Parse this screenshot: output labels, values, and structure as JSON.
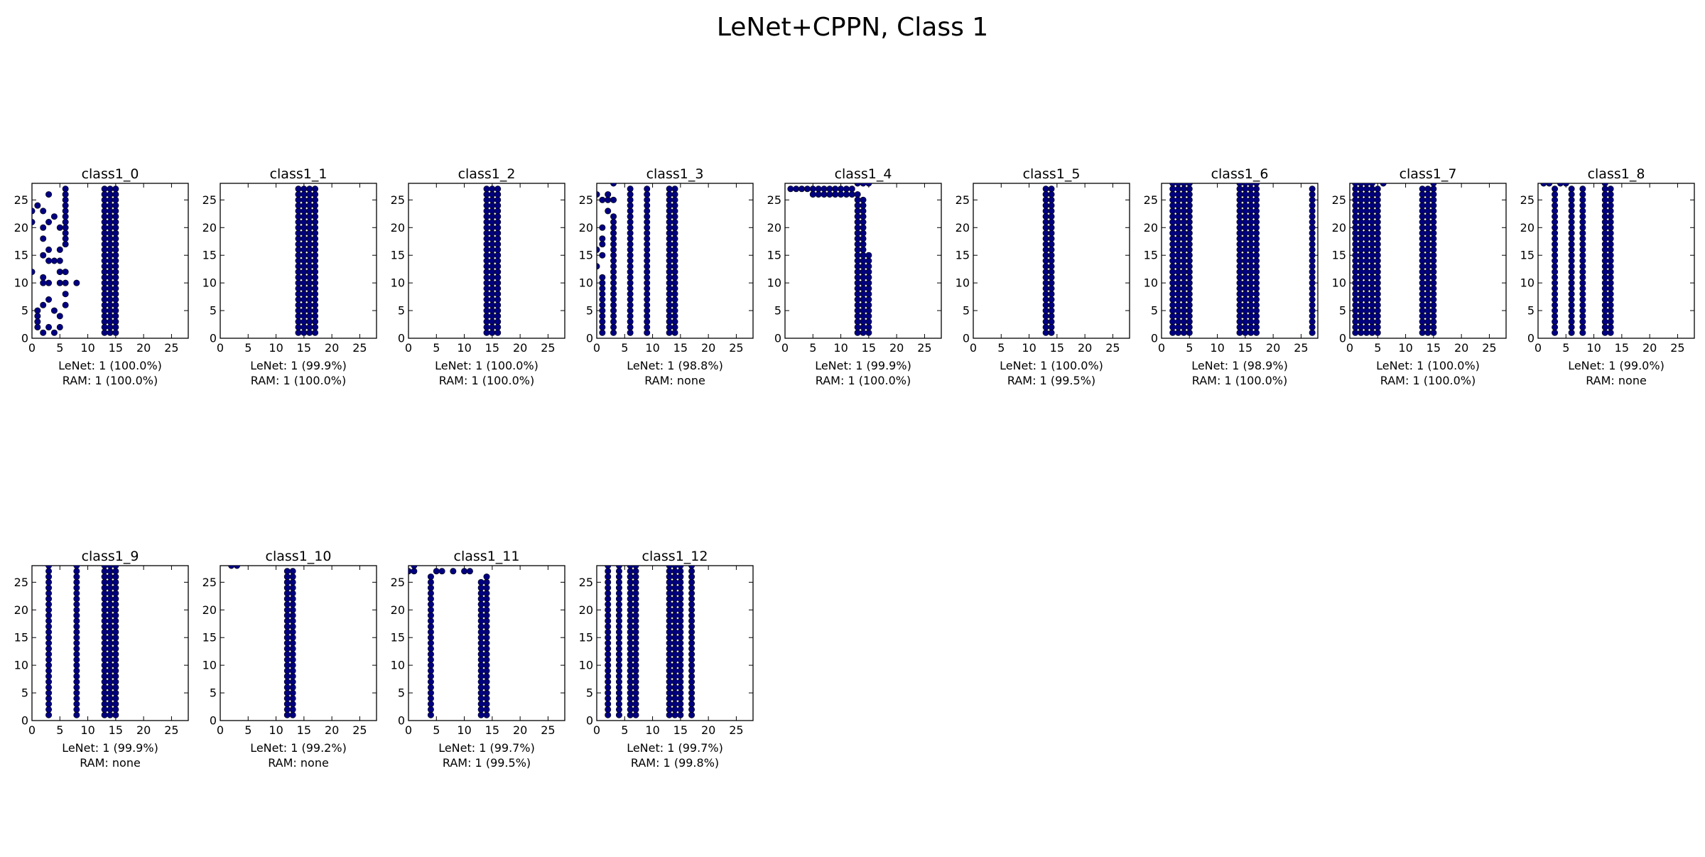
{
  "figure": {
    "title": "LeNet+CPPN, Class 1",
    "marker_color": "#000080",
    "axis_color": "#000000"
  },
  "chart_data": [
    {
      "type": "scatter",
      "title": "class1_0",
      "xlim": [
        0,
        28
      ],
      "ylim": [
        0,
        28
      ],
      "xticks": [
        0,
        5,
        10,
        15,
        20,
        25
      ],
      "yticks": [
        0,
        5,
        10,
        15,
        20,
        25
      ],
      "caption": [
        "LeNet: 1 (100.0%)",
        "RAM: 1 (100.0%)"
      ],
      "columns": [
        {
          "x": 6,
          "y_from": 17,
          "y_to": 27
        },
        {
          "x": 13,
          "y_from": 1,
          "y_to": 27
        },
        {
          "x": 14,
          "y_from": 1,
          "y_to": 27
        },
        {
          "x": 15,
          "y_from": 1,
          "y_to": 27
        }
      ],
      "points": [
        [
          0,
          12
        ],
        [
          0,
          21
        ],
        [
          0,
          23
        ],
        [
          1,
          24
        ],
        [
          1,
          5
        ],
        [
          1,
          4
        ],
        [
          1,
          3
        ],
        [
          1,
          2
        ],
        [
          2,
          1
        ],
        [
          2,
          20
        ],
        [
          2,
          23
        ],
        [
          2,
          18
        ],
        [
          2,
          15
        ],
        [
          2,
          11
        ],
        [
          2,
          10
        ],
        [
          2,
          6
        ],
        [
          3,
          26
        ],
        [
          3,
          21
        ],
        [
          3,
          16
        ],
        [
          3,
          14
        ],
        [
          3,
          10
        ],
        [
          3,
          7
        ],
        [
          3,
          2
        ],
        [
          4,
          22
        ],
        [
          4,
          14
        ],
        [
          4,
          5
        ],
        [
          4,
          1
        ],
        [
          5,
          20
        ],
        [
          5,
          16
        ],
        [
          5,
          14
        ],
        [
          5,
          12
        ],
        [
          5,
          10
        ],
        [
          5,
          4
        ],
        [
          5,
          2
        ],
        [
          6,
          12
        ],
        [
          6,
          10
        ],
        [
          6,
          8
        ],
        [
          6,
          6
        ],
        [
          8,
          10
        ]
      ]
    },
    {
      "type": "scatter",
      "title": "class1_1",
      "xlim": [
        0,
        28
      ],
      "ylim": [
        0,
        28
      ],
      "xticks": [
        0,
        5,
        10,
        15,
        20,
        25
      ],
      "yticks": [
        0,
        5,
        10,
        15,
        20,
        25
      ],
      "caption": [
        "LeNet: 1 (99.9%)",
        "RAM: 1 (100.0%)"
      ],
      "columns": [
        {
          "x": 14,
          "y_from": 1,
          "y_to": 27
        },
        {
          "x": 15,
          "y_from": 1,
          "y_to": 27
        },
        {
          "x": 16,
          "y_from": 1,
          "y_to": 27
        },
        {
          "x": 17,
          "y_from": 1,
          "y_to": 27
        }
      ],
      "points": []
    },
    {
      "type": "scatter",
      "title": "class1_2",
      "xlim": [
        0,
        28
      ],
      "ylim": [
        0,
        28
      ],
      "xticks": [
        0,
        5,
        10,
        15,
        20,
        25
      ],
      "yticks": [
        0,
        5,
        10,
        15,
        20,
        25
      ],
      "caption": [
        "LeNet: 1 (100.0%)",
        "RAM: 1 (100.0%)"
      ],
      "columns": [
        {
          "x": 14,
          "y_from": 1,
          "y_to": 27
        },
        {
          "x": 15,
          "y_from": 1,
          "y_to": 27
        },
        {
          "x": 16,
          "y_from": 1,
          "y_to": 27
        }
      ],
      "points": []
    },
    {
      "type": "scatter",
      "title": "class1_3",
      "xlim": [
        0,
        28
      ],
      "ylim": [
        0,
        28
      ],
      "xticks": [
        0,
        5,
        10,
        15,
        20,
        25
      ],
      "yticks": [
        0,
        5,
        10,
        15,
        20,
        25
      ],
      "caption": [
        "LeNet: 1 (98.8%)",
        "RAM: none"
      ],
      "columns": [
        {
          "x": 1,
          "y_from": 1,
          "y_to": 11
        },
        {
          "x": 3,
          "y_from": 1,
          "y_to": 22
        },
        {
          "x": 6,
          "y_from": 1,
          "y_to": 27
        },
        {
          "x": 9,
          "y_from": 1,
          "y_to": 27
        },
        {
          "x": 13,
          "y_from": 1,
          "y_to": 27
        },
        {
          "x": 14,
          "y_from": 1,
          "y_to": 27
        }
      ],
      "points": [
        [
          0,
          26
        ],
        [
          0,
          13
        ],
        [
          0,
          16
        ],
        [
          1,
          25
        ],
        [
          1,
          20
        ],
        [
          1,
          18
        ],
        [
          1,
          17
        ],
        [
          1,
          15
        ],
        [
          2,
          26
        ],
        [
          2,
          25
        ],
        [
          2,
          23
        ],
        [
          3,
          28
        ],
        [
          3,
          25
        ]
      ]
    },
    {
      "type": "scatter",
      "title": "class1_4",
      "xlim": [
        0,
        28
      ],
      "ylim": [
        0,
        28
      ],
      "xticks": [
        0,
        5,
        10,
        15,
        20,
        25
      ],
      "yticks": [
        0,
        5,
        10,
        15,
        20,
        25
      ],
      "caption": [
        "LeNet: 1 (99.9%)",
        "RAM: 1 (100.0%)"
      ],
      "columns": [
        {
          "x": 13,
          "y_from": 1,
          "y_to": 26
        },
        {
          "x": 14,
          "y_from": 1,
          "y_to": 25
        },
        {
          "x": 15,
          "y_from": 1,
          "y_to": 15
        }
      ],
      "points": [
        [
          1,
          27
        ],
        [
          2,
          27
        ],
        [
          3,
          27
        ],
        [
          4,
          27
        ],
        [
          5,
          27
        ],
        [
          5,
          26
        ],
        [
          6,
          27
        ],
        [
          6,
          26
        ],
        [
          7,
          27
        ],
        [
          7,
          26
        ],
        [
          8,
          27
        ],
        [
          8,
          26
        ],
        [
          9,
          27
        ],
        [
          9,
          26
        ],
        [
          10,
          27
        ],
        [
          10,
          26
        ],
        [
          11,
          27
        ],
        [
          11,
          26
        ],
        [
          12,
          27
        ],
        [
          12,
          26
        ],
        [
          13,
          28
        ],
        [
          14,
          28
        ],
        [
          15,
          28
        ]
      ]
    },
    {
      "type": "scatter",
      "title": "class1_5",
      "xlim": [
        0,
        28
      ],
      "ylim": [
        0,
        28
      ],
      "xticks": [
        0,
        5,
        10,
        15,
        20,
        25
      ],
      "yticks": [
        0,
        5,
        10,
        15,
        20,
        25
      ],
      "caption": [
        "LeNet: 1 (100.0%)",
        "RAM: 1 (99.5%)"
      ],
      "columns": [
        {
          "x": 13,
          "y_from": 1,
          "y_to": 27
        },
        {
          "x": 14,
          "y_from": 1,
          "y_to": 27
        }
      ],
      "points": []
    },
    {
      "type": "scatter",
      "title": "class1_6",
      "xlim": [
        0,
        28
      ],
      "ylim": [
        0,
        28
      ],
      "xticks": [
        0,
        5,
        10,
        15,
        20,
        25
      ],
      "yticks": [
        0,
        5,
        10,
        15,
        20,
        25
      ],
      "caption": [
        "LeNet: 1 (98.9%)",
        "RAM: 1 (100.0%)"
      ],
      "columns": [
        {
          "x": 2,
          "y_from": 1,
          "y_to": 28
        },
        {
          "x": 3,
          "y_from": 1,
          "y_to": 28
        },
        {
          "x": 4,
          "y_from": 1,
          "y_to": 28
        },
        {
          "x": 5,
          "y_from": 1,
          "y_to": 28
        },
        {
          "x": 14,
          "y_from": 1,
          "y_to": 28
        },
        {
          "x": 15,
          "y_from": 1,
          "y_to": 28
        },
        {
          "x": 16,
          "y_from": 1,
          "y_to": 28
        },
        {
          "x": 17,
          "y_from": 1,
          "y_to": 28
        },
        {
          "x": 27,
          "y_from": 1,
          "y_to": 27
        }
      ],
      "points": []
    },
    {
      "type": "scatter",
      "title": "class1_7",
      "xlim": [
        0,
        28
      ],
      "ylim": [
        0,
        28
      ],
      "xticks": [
        0,
        5,
        10,
        15,
        20,
        25
      ],
      "yticks": [
        0,
        5,
        10,
        15,
        20,
        25
      ],
      "caption": [
        "LeNet: 1 (100.0%)",
        "RAM: 1 (100.0%)"
      ],
      "columns": [
        {
          "x": 1,
          "y_from": 1,
          "y_to": 27
        },
        {
          "x": 2,
          "y_from": 1,
          "y_to": 27
        },
        {
          "x": 3,
          "y_from": 1,
          "y_to": 27
        },
        {
          "x": 4,
          "y_from": 1,
          "y_to": 27
        },
        {
          "x": 5,
          "y_from": 1,
          "y_to": 27
        },
        {
          "x": 13,
          "y_from": 1,
          "y_to": 27
        },
        {
          "x": 14,
          "y_from": 1,
          "y_to": 27
        },
        {
          "x": 15,
          "y_from": 1,
          "y_to": 28
        }
      ],
      "points": [
        [
          1,
          28
        ],
        [
          2,
          28
        ],
        [
          3,
          28
        ],
        [
          4,
          28
        ],
        [
          6,
          28
        ]
      ]
    },
    {
      "type": "scatter",
      "title": "class1_8",
      "xlim": [
        0,
        28
      ],
      "ylim": [
        0,
        28
      ],
      "xticks": [
        0,
        5,
        10,
        15,
        20,
        25
      ],
      "yticks": [
        0,
        5,
        10,
        15,
        20,
        25
      ],
      "caption": [
        "LeNet: 1 (99.0%)",
        "RAM: none"
      ],
      "columns": [
        {
          "x": 3,
          "y_from": 1,
          "y_to": 27
        },
        {
          "x": 6,
          "y_from": 1,
          "y_to": 27
        },
        {
          "x": 8,
          "y_from": 1,
          "y_to": 27
        },
        {
          "x": 12,
          "y_from": 1,
          "y_to": 27
        },
        {
          "x": 13,
          "y_from": 1,
          "y_to": 27
        }
      ],
      "points": [
        [
          1,
          28
        ],
        [
          2,
          28
        ],
        [
          4,
          28
        ],
        [
          5,
          28
        ],
        [
          12,
          28
        ]
      ]
    },
    {
      "type": "scatter",
      "title": "class1_9",
      "xlim": [
        0,
        28
      ],
      "ylim": [
        0,
        28
      ],
      "xticks": [
        0,
        5,
        10,
        15,
        20,
        25
      ],
      "yticks": [
        0,
        5,
        10,
        15,
        20,
        25
      ],
      "caption": [
        "LeNet: 1 (99.9%)",
        "RAM: none"
      ],
      "columns": [
        {
          "x": 3,
          "y_from": 1,
          "y_to": 28
        },
        {
          "x": 8,
          "y_from": 1,
          "y_to": 28
        },
        {
          "x": 13,
          "y_from": 1,
          "y_to": 28
        },
        {
          "x": 14,
          "y_from": 1,
          "y_to": 28
        },
        {
          "x": 15,
          "y_from": 1,
          "y_to": 28
        }
      ],
      "points": []
    },
    {
      "type": "scatter",
      "title": "class1_10",
      "xlim": [
        0,
        28
      ],
      "ylim": [
        0,
        28
      ],
      "xticks": [
        0,
        5,
        10,
        15,
        20,
        25
      ],
      "yticks": [
        0,
        5,
        10,
        15,
        20,
        25
      ],
      "caption": [
        "LeNet: 1 (99.2%)",
        "RAM: none"
      ],
      "columns": [
        {
          "x": 12,
          "y_from": 1,
          "y_to": 27
        },
        {
          "x": 13,
          "y_from": 1,
          "y_to": 27
        }
      ],
      "points": [
        [
          2,
          28
        ],
        [
          3,
          28
        ]
      ]
    },
    {
      "type": "scatter",
      "title": "class1_11",
      "xlim": [
        0,
        28
      ],
      "ylim": [
        0,
        28
      ],
      "xticks": [
        0,
        5,
        10,
        15,
        20,
        25
      ],
      "yticks": [
        0,
        5,
        10,
        15,
        20,
        25
      ],
      "caption": [
        "LeNet: 1 (99.7%)",
        "RAM: 1 (99.5%)"
      ],
      "columns": [
        {
          "x": 4,
          "y_from": 1,
          "y_to": 26
        },
        {
          "x": 13,
          "y_from": 1,
          "y_to": 25
        },
        {
          "x": 14,
          "y_from": 1,
          "y_to": 26
        }
      ],
      "points": [
        [
          0,
          27
        ],
        [
          1,
          27
        ],
        [
          1,
          28
        ],
        [
          5,
          27
        ],
        [
          6,
          27
        ],
        [
          8,
          27
        ],
        [
          10,
          27
        ],
        [
          11,
          27
        ]
      ]
    },
    {
      "type": "scatter",
      "title": "class1_12",
      "xlim": [
        0,
        28
      ],
      "ylim": [
        0,
        28
      ],
      "xticks": [
        0,
        5,
        10,
        15,
        20,
        25
      ],
      "yticks": [
        0,
        5,
        10,
        15,
        20,
        25
      ],
      "caption": [
        "LeNet: 1 (99.7%)",
        "RAM: 1 (99.8%)"
      ],
      "columns": [
        {
          "x": 2,
          "y_from": 1,
          "y_to": 28
        },
        {
          "x": 4,
          "y_from": 1,
          "y_to": 28
        },
        {
          "x": 6,
          "y_from": 1,
          "y_to": 28
        },
        {
          "x": 7,
          "y_from": 1,
          "y_to": 28
        },
        {
          "x": 13,
          "y_from": 1,
          "y_to": 28
        },
        {
          "x": 14,
          "y_from": 1,
          "y_to": 28
        },
        {
          "x": 15,
          "y_from": 1,
          "y_to": 28
        },
        {
          "x": 17,
          "y_from": 1,
          "y_to": 28
        }
      ],
      "points": []
    }
  ]
}
